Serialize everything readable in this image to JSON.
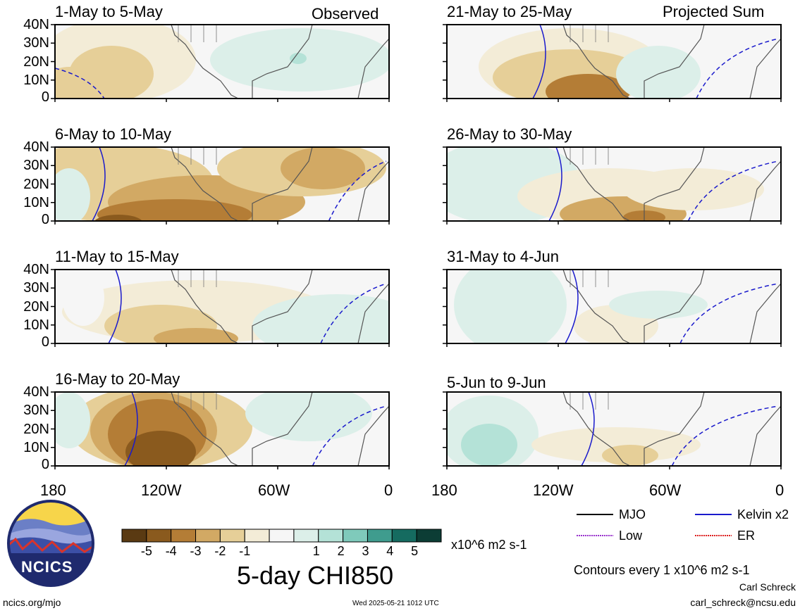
{
  "panels": {
    "left": [
      {
        "title": "1-May to 5-May",
        "tag": "Observed"
      },
      {
        "title": "6-May to 10-May",
        "tag": ""
      },
      {
        "title": "11-May to 15-May",
        "tag": ""
      },
      {
        "title": "16-May to 20-May",
        "tag": ""
      }
    ],
    "right": [
      {
        "title": "21-May to 25-May",
        "tag": "Projected Sum"
      },
      {
        "title": "26-May to 30-May",
        "tag": ""
      },
      {
        "title": "31-May to 4-Jun",
        "tag": ""
      },
      {
        "title": "5-Jun to 9-Jun",
        "tag": ""
      }
    ]
  },
  "lat_labels": [
    "40N",
    "30N",
    "20N",
    "10N",
    "0"
  ],
  "lon_labels": [
    "180",
    "120W",
    "60W",
    "0"
  ],
  "legend": {
    "mjo": "MJO",
    "kelvin": "Kelvin x2",
    "low": "Low",
    "er": "ER",
    "colors": {
      "mjo": "#000000",
      "kelvin": "#1a1acc",
      "low": "#9933cc",
      "er": "#dd2222"
    }
  },
  "colorbar": {
    "labels": [
      "-5",
      "-4",
      "-3",
      "-2",
      "-1",
      "1",
      "2",
      "3",
      "4",
      "5"
    ],
    "units": "x10^6 m2 s-1",
    "colors": [
      "#5a3a12",
      "#8a5a1e",
      "#b47d36",
      "#d2a964",
      "#e6cf98",
      "#f3ecd7",
      "#f6f6f6",
      "#dcefe9",
      "#b4e2d7",
      "#7fcabb",
      "#3f9c8e",
      "#156b60",
      "#0c3d35"
    ]
  },
  "title": "5-day CHI850",
  "contours_note": "Contours every 1 x10^6 m2 s-1",
  "author": "Carl Schreck",
  "email": "carl_schreck@ncsu.edu",
  "url": "ncics.org/mjo",
  "timestamp": "Wed 2025-05-21 1012 UTC",
  "logo_text": "NCICS"
}
